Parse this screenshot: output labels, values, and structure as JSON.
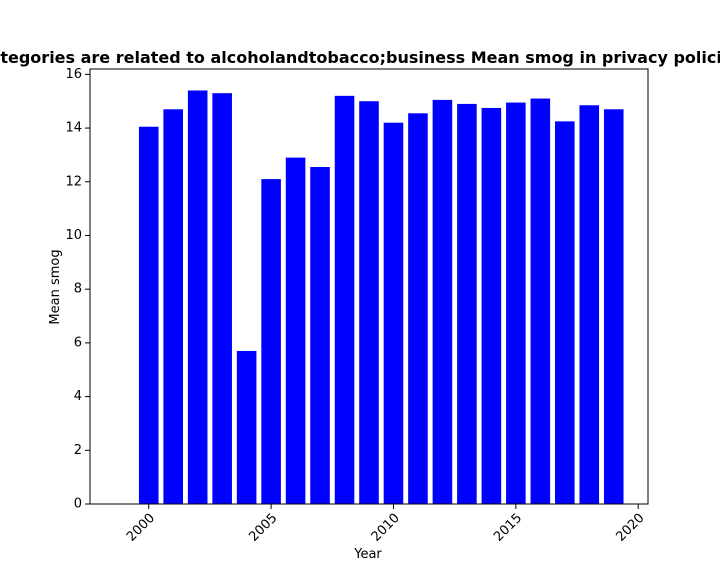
{
  "chart_data": {
    "type": "bar",
    "title": "Categories are related to alcoholandtobacco;business Mean smog in privacy policies",
    "xlabel": "Year",
    "ylabel": "Mean smog",
    "x": [
      2000,
      2001,
      2002,
      2003,
      2004,
      2005,
      2006,
      2007,
      2008,
      2009,
      2010,
      2011,
      2012,
      2013,
      2014,
      2015,
      2016,
      2017,
      2018,
      2019
    ],
    "values": [
      14.05,
      14.7,
      15.4,
      15.3,
      5.7,
      12.1,
      12.9,
      12.55,
      15.2,
      15.0,
      14.2,
      14.55,
      15.05,
      14.9,
      14.75,
      14.95,
      15.1,
      14.25,
      14.85,
      14.7
    ],
    "xlim": [
      1997.6,
      2020.4
    ],
    "ylim": [
      0,
      16.2
    ],
    "xticks": [
      "2000",
      "2005",
      "2010",
      "2015",
      "2020"
    ],
    "yticks": [
      "0",
      "2",
      "4",
      "6",
      "8",
      "10",
      "12",
      "14",
      "16"
    ],
    "bar_color": "#0000ff",
    "grid": false,
    "legend": "none"
  }
}
